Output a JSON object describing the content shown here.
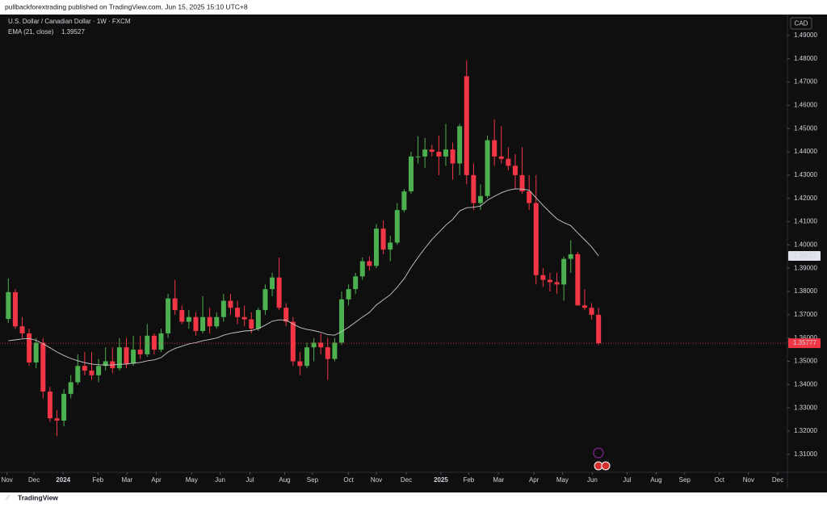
{
  "header": {
    "text": "pullbackforextrading published on TradingView.com, Jun 15, 2025 15:10 UTC+8"
  },
  "footer": {
    "brand": "TradingView"
  },
  "chart_data": {
    "type": "candlestick",
    "title": "U.S. Dollar / Canadian Dollar · 1W · FXCM",
    "currency": "CAD",
    "up_color": "#4caf50",
    "down_color": "#f23645",
    "open": [
      1.3682,
      1.3797,
      1.365,
      1.362,
      1.3495,
      1.358,
      1.337,
      1.3255,
      1.3245,
      1.336,
      1.341,
      1.348,
      1.346,
      1.344,
      1.348,
      1.35,
      1.347,
      1.356,
      1.349,
      1.355,
      1.353,
      1.361,
      1.355,
      1.362,
      1.377,
      1.372,
      1.367,
      1.369,
      1.363,
      1.369,
      1.365,
      1.369,
      1.376,
      1.373,
      1.369,
      1.368,
      1.364,
      1.372,
      1.381,
      1.386,
      1.373,
      1.367,
      1.35,
      1.348,
      1.356,
      1.358,
      1.356,
      1.351,
      1.358,
      1.3766,
      1.381,
      1.3865,
      1.393,
      1.391,
      1.407,
      1.398,
      1.401,
      1.415,
      1.423,
      1.438,
      1.438,
      1.441,
      1.44,
      1.438,
      1.441,
      1.435,
      1.4725,
      1.43,
      1.418,
      1.421,
      1.445,
      1.438,
      1.437,
      1.434,
      1.43,
      1.423,
      1.418,
      1.387,
      1.385,
      1.384,
      1.383,
      1.394,
      1.396,
      1.374,
      1.373,
      1.37
    ],
    "high": [
      1.3856,
      1.381,
      1.369,
      1.364,
      1.36,
      1.36,
      1.339,
      1.329,
      1.338,
      1.344,
      1.353,
      1.354,
      1.354,
      1.351,
      1.356,
      1.356,
      1.36,
      1.36,
      1.361,
      1.361,
      1.366,
      1.362,
      1.364,
      1.379,
      1.385,
      1.374,
      1.372,
      1.371,
      1.378,
      1.373,
      1.371,
      1.379,
      1.379,
      1.376,
      1.374,
      1.371,
      1.373,
      1.383,
      1.388,
      1.3946,
      1.375,
      1.369,
      1.354,
      1.358,
      1.36,
      1.362,
      1.36,
      1.36,
      1.38,
      1.383,
      1.388,
      1.3946,
      1.395,
      1.409,
      1.4105,
      1.404,
      1.418,
      1.424,
      1.44,
      1.4467,
      1.446,
      1.443,
      1.447,
      1.452,
      1.444,
      1.452,
      1.4793,
      1.435,
      1.426,
      1.447,
      1.454,
      1.451,
      1.442,
      1.439,
      1.442,
      1.43,
      1.43,
      1.39,
      1.388,
      1.388,
      1.395,
      1.402,
      1.397,
      1.381,
      1.375,
      1.373
    ],
    "low": [
      1.3665,
      1.364,
      1.36,
      1.348,
      1.347,
      1.334,
      1.324,
      1.3178,
      1.322,
      1.334,
      1.34,
      1.344,
      1.342,
      1.341,
      1.346,
      1.345,
      1.346,
      1.347,
      1.348,
      1.351,
      1.352,
      1.353,
      1.354,
      1.36,
      1.37,
      1.366,
      1.364,
      1.361,
      1.362,
      1.362,
      1.364,
      1.367,
      1.37,
      1.366,
      1.365,
      1.362,
      1.363,
      1.37,
      1.378,
      1.372,
      1.365,
      1.348,
      1.344,
      1.347,
      1.35,
      1.353,
      1.342,
      1.35,
      1.357,
      1.374,
      1.379,
      1.385,
      1.389,
      1.39,
      1.396,
      1.393,
      1.4,
      1.414,
      1.422,
      1.435,
      1.433,
      1.438,
      1.43,
      1.434,
      1.428,
      1.43,
      1.426,
      1.415,
      1.415,
      1.42,
      1.434,
      1.435,
      1.432,
      1.424,
      1.422,
      1.415,
      1.383,
      1.382,
      1.38,
      1.379,
      1.376,
      1.388,
      1.374,
      1.372,
      1.368,
      1.357
    ],
    "close": [
      1.3797,
      1.365,
      1.362,
      1.3495,
      1.358,
      1.337,
      1.3255,
      1.3245,
      1.336,
      1.341,
      1.348,
      1.346,
      1.344,
      1.348,
      1.35,
      1.347,
      1.356,
      1.349,
      1.355,
      1.353,
      1.361,
      1.355,
      1.362,
      1.377,
      1.372,
      1.367,
      1.369,
      1.363,
      1.369,
      1.365,
      1.369,
      1.376,
      1.373,
      1.369,
      1.368,
      1.364,
      1.372,
      1.381,
      1.386,
      1.373,
      1.367,
      1.35,
      1.348,
      1.356,
      1.358,
      1.356,
      1.351,
      1.358,
      1.3766,
      1.381,
      1.3865,
      1.393,
      1.391,
      1.407,
      1.398,
      1.401,
      1.415,
      1.423,
      1.438,
      1.438,
      1.441,
      1.44,
      1.438,
      1.441,
      1.435,
      1.451,
      1.43,
      1.418,
      1.421,
      1.445,
      1.438,
      1.437,
      1.434,
      1.43,
      1.423,
      1.418,
      1.387,
      1.385,
      1.384,
      1.383,
      1.394,
      1.396,
      1.374,
      1.373,
      1.37,
      1.35777
    ],
    "ema": {
      "name": "EMA (21, close)",
      "color": "#c8c8c8",
      "values": [
        1.3588,
        1.3592,
        1.3596,
        1.3598,
        1.359,
        1.3575,
        1.3558,
        1.354,
        1.3525,
        1.3512,
        1.3502,
        1.3494,
        1.3488,
        1.3485,
        1.3484,
        1.3484,
        1.3487,
        1.3488,
        1.3492,
        1.3495,
        1.3502,
        1.3506,
        1.3516,
        1.354,
        1.3555,
        1.3565,
        1.3575,
        1.358,
        1.3588,
        1.3594,
        1.36,
        1.3612,
        1.362,
        1.3625,
        1.363,
        1.3632,
        1.364,
        1.3655,
        1.3672,
        1.3678,
        1.3677,
        1.366,
        1.3645,
        1.3637,
        1.3632,
        1.3625,
        1.3615,
        1.3612,
        1.3628,
        1.3646,
        1.3668,
        1.369,
        1.371,
        1.3742,
        1.3764,
        1.3786,
        1.3818,
        1.3855,
        1.3903,
        1.3946,
        1.3986,
        1.4023,
        1.4054,
        1.4085,
        1.411,
        1.4146,
        1.416,
        1.4162,
        1.4167,
        1.4192,
        1.4209,
        1.4224,
        1.4235,
        1.4241,
        1.424,
        1.4235,
        1.4202,
        1.417,
        1.414,
        1.4112,
        1.4096,
        1.4083,
        1.4052,
        1.4022,
        1.3992,
        1.39527
      ]
    },
    "xlim": [
      -1.2,
      112.2
    ],
    "xticks": [
      {
        "value": -0.2,
        "label": "Nov"
      },
      {
        "value": 3.7,
        "label": "Dec"
      },
      {
        "value": 7.9,
        "label": "2024"
      },
      {
        "value": 12.9,
        "label": "Feb"
      },
      {
        "value": 17.1,
        "label": "Mar"
      },
      {
        "value": 21.3,
        "label": "Apr"
      },
      {
        "value": 26.4,
        "label": "May"
      },
      {
        "value": 30.5,
        "label": "Jun"
      },
      {
        "value": 34.8,
        "label": "Jul"
      },
      {
        "value": 39.8,
        "label": "Aug"
      },
      {
        "value": 43.8,
        "label": "Sep"
      },
      {
        "value": 49.0,
        "label": "Oct"
      },
      {
        "value": 53.0,
        "label": "Nov"
      },
      {
        "value": 57.3,
        "label": "Dec"
      },
      {
        "value": 62.3,
        "label": "2025"
      },
      {
        "value": 66.3,
        "label": "Feb"
      },
      {
        "value": 70.6,
        "label": "Mar"
      },
      {
        "value": 75.7,
        "label": "Apr"
      },
      {
        "value": 79.8,
        "label": "May"
      },
      {
        "value": 84.1,
        "label": "Jun"
      },
      {
        "value": 89.1,
        "label": "Jul"
      },
      {
        "value": 93.3,
        "label": "Aug"
      },
      {
        "value": 97.4,
        "label": "Sep"
      },
      {
        "value": 102.4,
        "label": "Oct"
      },
      {
        "value": 106.6,
        "label": "Nov"
      },
      {
        "value": 110.8,
        "label": "Dec"
      }
    ],
    "ylim": [
      1.3023,
      1.499
    ],
    "yticks": [
      {
        "value": 1.31,
        "label": "1.31000"
      },
      {
        "value": 1.32,
        "label": "1.32000"
      },
      {
        "value": 1.33,
        "label": "1.33000"
      },
      {
        "value": 1.34,
        "label": "1.34000"
      },
      {
        "value": 1.35,
        "label": "1.35000"
      },
      {
        "value": 1.36,
        "label": "1.36000"
      },
      {
        "value": 1.37,
        "label": "1.37000"
      },
      {
        "value": 1.38,
        "label": "1.38000"
      },
      {
        "value": 1.39,
        "label": "1.39000"
      },
      {
        "value": 1.4,
        "label": "1.40000"
      },
      {
        "value": 1.41,
        "label": "1.41000"
      },
      {
        "value": 1.42,
        "label": "1.42000"
      },
      {
        "value": 1.43,
        "label": "1.43000"
      },
      {
        "value": 1.44,
        "label": "1.44000"
      },
      {
        "value": 1.45,
        "label": "1.45000"
      },
      {
        "value": 1.46,
        "label": "1.46000"
      },
      {
        "value": 1.47,
        "label": "1.47000"
      },
      {
        "value": 1.48,
        "label": "1.48000"
      },
      {
        "value": 1.49,
        "label": "1.49000"
      }
    ],
    "grid": false
  }
}
